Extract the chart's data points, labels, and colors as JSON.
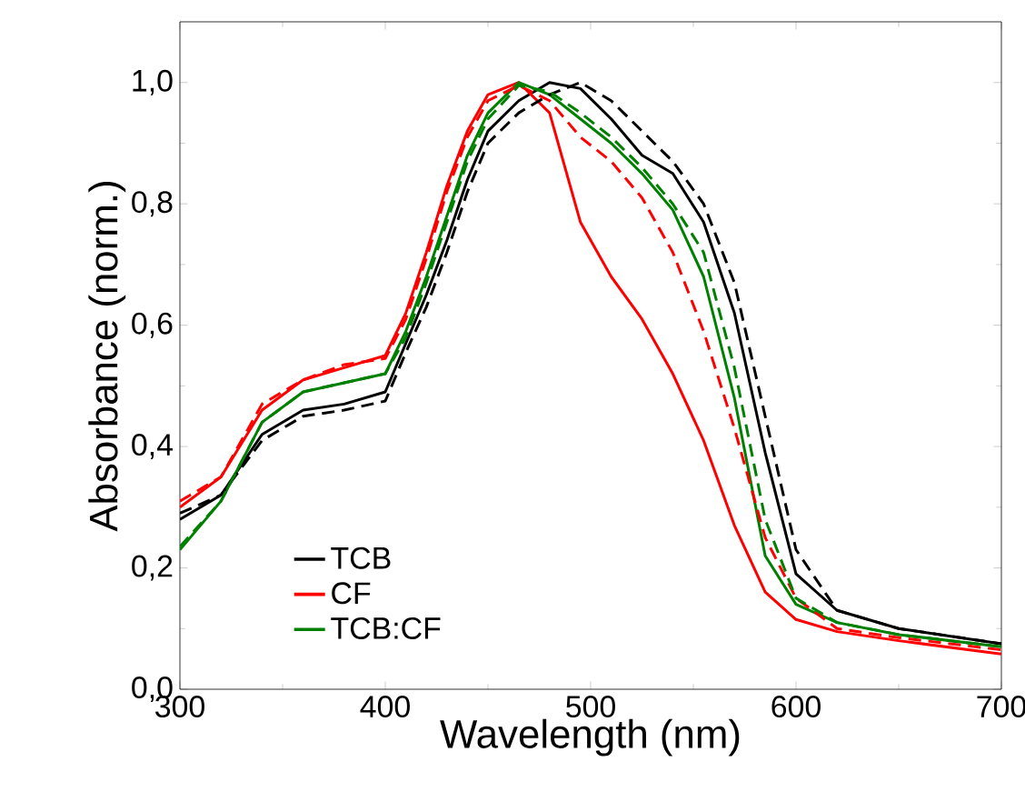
{
  "chart_data": {
    "type": "line",
    "xlabel": "Wavelength (nm)",
    "ylabel": "Absorbance (norm.)",
    "x": [
      300,
      320,
      340,
      360,
      380,
      400,
      410,
      420,
      430,
      440,
      450,
      465,
      480,
      495,
      510,
      525,
      540,
      555,
      570,
      585,
      600,
      620,
      650,
      700
    ],
    "series": [
      {
        "name": "TCB",
        "color": "#000000",
        "line_style": "solid",
        "values": [
          0.28,
          0.32,
          0.42,
          0.46,
          0.47,
          0.49,
          0.57,
          0.65,
          0.74,
          0.84,
          0.92,
          0.97,
          1.0,
          0.99,
          0.94,
          0.88,
          0.85,
          0.77,
          0.62,
          0.39,
          0.19,
          0.13,
          0.1,
          0.075
        ]
      },
      {
        "name": "CF",
        "color": "#ff0000",
        "line_style": "solid",
        "values": [
          0.3,
          0.35,
          0.46,
          0.51,
          0.53,
          0.55,
          0.62,
          0.72,
          0.83,
          0.92,
          0.98,
          1.0,
          0.95,
          0.77,
          0.68,
          0.61,
          0.52,
          0.41,
          0.27,
          0.16,
          0.115,
          0.095,
          0.08,
          0.058
        ]
      },
      {
        "name": "TCB:CF",
        "color": "#008000",
        "line_style": "solid",
        "values": [
          0.23,
          0.31,
          0.44,
          0.49,
          0.505,
          0.52,
          0.59,
          0.68,
          0.78,
          0.88,
          0.95,
          1.0,
          0.98,
          0.94,
          0.9,
          0.85,
          0.79,
          0.68,
          0.48,
          0.22,
          0.14,
          0.11,
          0.09,
          0.07
        ]
      },
      {
        "color": "#000000",
        "line_style": "dashed",
        "values": [
          0.29,
          0.32,
          0.41,
          0.45,
          0.46,
          0.475,
          0.555,
          0.63,
          0.72,
          0.82,
          0.9,
          0.95,
          0.98,
          1.0,
          0.97,
          0.92,
          0.87,
          0.8,
          0.67,
          0.45,
          0.23,
          0.13,
          0.1,
          0.075
        ]
      },
      {
        "color": "#ff0000",
        "line_style": "dashed",
        "values": [
          0.31,
          0.35,
          0.47,
          0.51,
          0.535,
          0.545,
          0.61,
          0.71,
          0.82,
          0.91,
          0.97,
          0.995,
          0.97,
          0.91,
          0.87,
          0.81,
          0.72,
          0.59,
          0.43,
          0.25,
          0.15,
          0.1,
          0.085,
          0.065
        ]
      },
      {
        "color": "#008000",
        "line_style": "dashed",
        "values": [
          0.235,
          0.31,
          0.44,
          0.49,
          0.505,
          0.52,
          0.58,
          0.67,
          0.77,
          0.87,
          0.94,
          0.995,
          0.985,
          0.95,
          0.91,
          0.86,
          0.8,
          0.72,
          0.53,
          0.28,
          0.15,
          0.11,
          0.09,
          0.07
        ]
      }
    ],
    "xlim": [
      300,
      700
    ],
    "ylim": [
      0,
      1.1
    ],
    "xticks": [
      300,
      400,
      500,
      600,
      700
    ],
    "yticks": [
      {
        "value": 0,
        "label": "0,0"
      },
      {
        "value": 0.2,
        "label": "0,2"
      },
      {
        "value": 0.4,
        "label": "0,4"
      },
      {
        "value": 0.6,
        "label": "0,6"
      },
      {
        "value": 0.8,
        "label": "0,8"
      },
      {
        "value": 1.0,
        "label": "1,0"
      }
    ],
    "legend": "bottom left",
    "grid": false
  }
}
